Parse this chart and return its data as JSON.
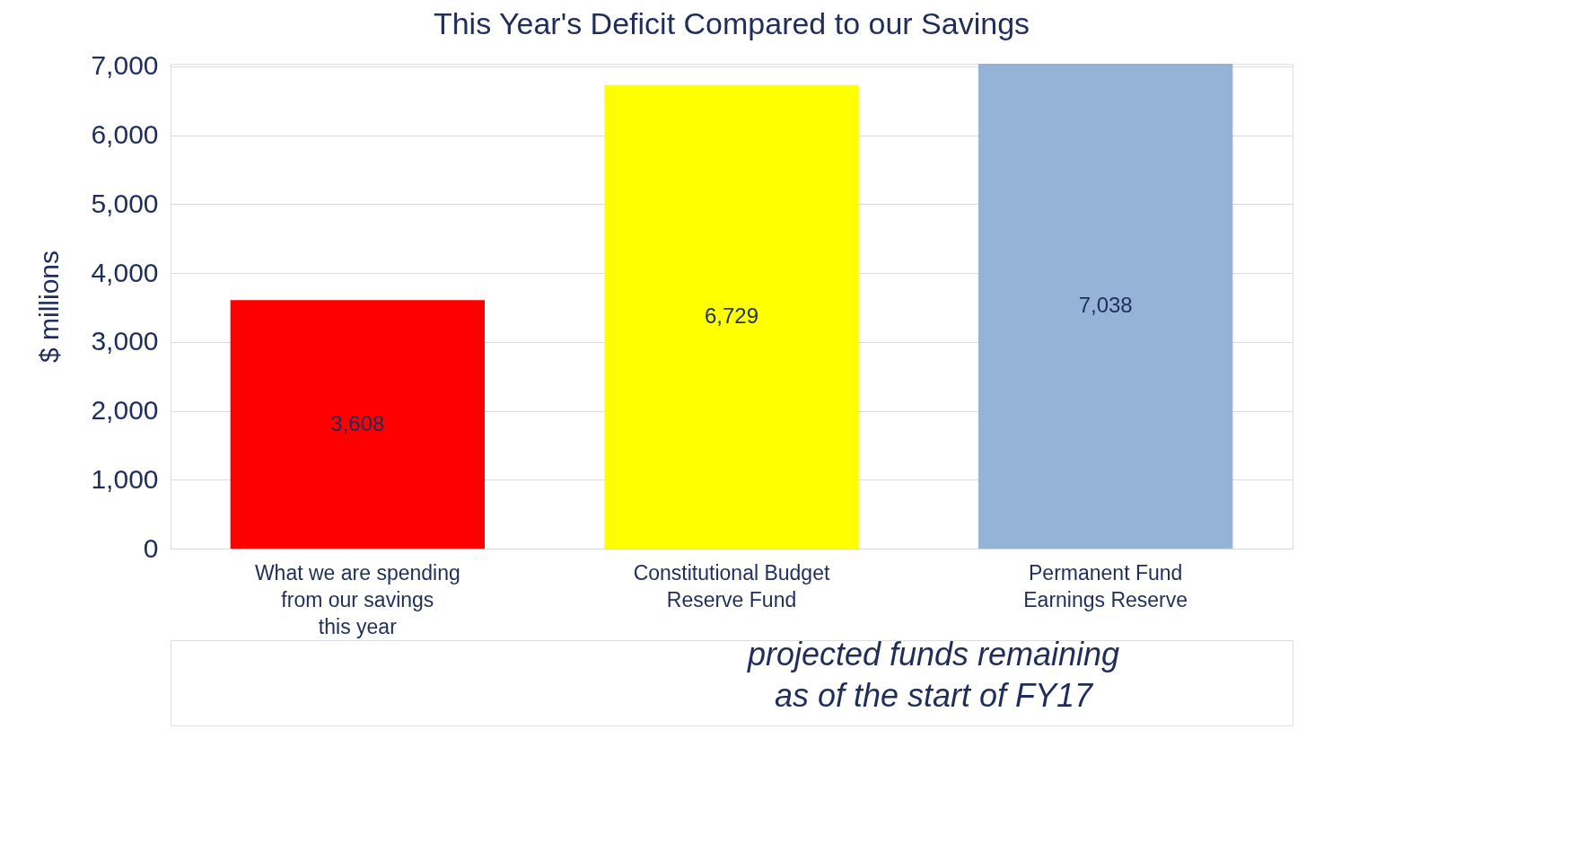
{
  "chart_data": {
    "type": "bar",
    "title": "This Year's Deficit Compared to our Savings",
    "ylabel": "$ millions",
    "categories": [
      "What we are spending\nfrom our savings\nthis year",
      "Constitutional Budget\nReserve Fund",
      "Permanent Fund\nEarnings Reserve"
    ],
    "values": [
      3608,
      6729,
      7038
    ],
    "colors": [
      "#ff0000",
      "#ffff00",
      "#95b3d7"
    ],
    "value_labels": [
      "3,608",
      "6,729",
      "7,038"
    ],
    "ylim": [
      0,
      7038
    ],
    "yticks": [
      0,
      {
        "value": 1000,
        "label": "1,000"
      },
      {
        "value": 2000,
        "label": "2,000"
      },
      {
        "value": 3000,
        "label": "3,000"
      },
      {
        "value": 4000,
        "label": "4,000"
      },
      {
        "value": 5000,
        "label": "5,000"
      },
      {
        "value": 6000,
        "label": "6,000"
      },
      {
        "value": 7000,
        "label": "7,000"
      }
    ],
    "grid": "y",
    "annotations": [
      "projected funds remaining\nas of the start of FY17"
    ]
  }
}
